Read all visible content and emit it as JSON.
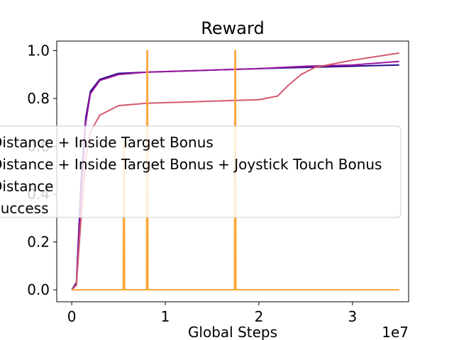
{
  "chart_data": {
    "type": "line",
    "title": "Reward",
    "xlabel": "Global Steps",
    "ylabel": "",
    "x_offset_label": "1e7",
    "xlim": [
      -0.16,
      3.6
    ],
    "ylim": [
      -0.05,
      1.04
    ],
    "x_ticks": [
      0,
      1,
      2,
      3
    ],
    "x_tick_labels": [
      "0",
      "1",
      "2",
      "3"
    ],
    "y_ticks": [
      0.0,
      0.2,
      0.4,
      0.6,
      0.8,
      1.0
    ],
    "y_tick_labels": [
      "0.0",
      "0.2",
      "0.4",
      "0.6",
      "0.8",
      "1.0"
    ],
    "grid": false,
    "legend_position": "center-left",
    "series": [
      {
        "name": "Distance + Inside Target Bonus",
        "color": "#2a0a8c",
        "x": [
          0,
          0.05,
          0.1,
          0.15,
          0.2,
          0.3,
          0.5,
          0.8,
          1.2,
          1.6,
          2.0,
          2.5,
          3.0,
          3.5
        ],
        "y": [
          0.0,
          0.03,
          0.45,
          0.72,
          0.83,
          0.88,
          0.905,
          0.91,
          0.915,
          0.92,
          0.925,
          0.93,
          0.935,
          0.94
        ]
      },
      {
        "name": "Distance + Inside Target Bonus + Joystick Touch Bonus",
        "color": "#9b179e",
        "x": [
          0,
          0.05,
          0.1,
          0.15,
          0.2,
          0.3,
          0.5,
          0.8,
          1.2,
          1.6,
          2.0,
          2.5,
          3.0,
          3.5
        ],
        "y": [
          0.0,
          0.02,
          0.4,
          0.7,
          0.82,
          0.875,
          0.9,
          0.91,
          0.915,
          0.92,
          0.925,
          0.935,
          0.94,
          0.955
        ]
      },
      {
        "name": "Distance",
        "color": "#d35a6e",
        "x": [
          0,
          0.05,
          0.1,
          0.15,
          0.2,
          0.3,
          0.5,
          0.8,
          1.2,
          1.6,
          2.0,
          2.2,
          2.3,
          2.45,
          2.6,
          3.0,
          3.5
        ],
        "y": [
          0.0,
          0.02,
          0.3,
          0.55,
          0.66,
          0.73,
          0.77,
          0.78,
          0.785,
          0.79,
          0.795,
          0.81,
          0.85,
          0.9,
          0.93,
          0.96,
          0.99
        ]
      },
      {
        "name": "Success",
        "color": "#fca636",
        "x": [
          0,
          0.55,
          0.555,
          0.56,
          0.565,
          0.8,
          0.805,
          0.81,
          0.815,
          1.74,
          1.745,
          1.75,
          1.755,
          3.5
        ],
        "y": [
          0,
          0,
          0.62,
          0.62,
          0,
          0,
          1.0,
          1.0,
          0,
          0,
          1.0,
          1.0,
          0,
          0
        ]
      }
    ]
  }
}
